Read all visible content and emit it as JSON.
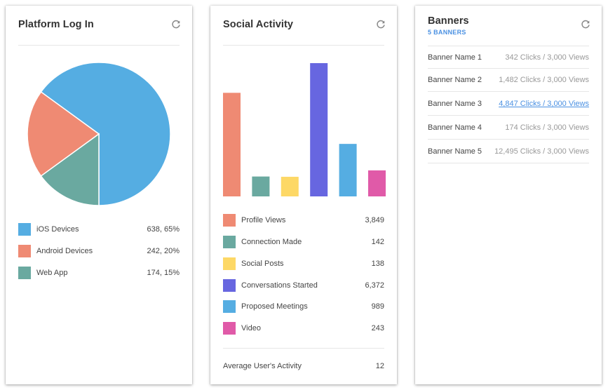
{
  "colors": {
    "ios": "#55ade2",
    "android": "#ef8a73",
    "webapp": "#6aa9a0",
    "social_posts": "#fdd866",
    "conversations": "#6766e0",
    "proposed": "#55ade2",
    "video": "#e05aa8",
    "link": "#4a90e2"
  },
  "platform": {
    "title": "Platform Log In",
    "refresh_icon": "refresh-icon",
    "legend": [
      {
        "label": "iOS Devices",
        "value": "638, 65%",
        "color": "#55ade2"
      },
      {
        "label": "Android Devices",
        "value": "242, 20%",
        "color": "#ef8a73"
      },
      {
        "label": "Web App",
        "value": "174, 15%",
        "color": "#6aa9a0"
      }
    ]
  },
  "social": {
    "title": "Social Activity",
    "refresh_icon": "refresh-icon",
    "legend": [
      {
        "label": "Profile Views",
        "value": "3,849",
        "color": "#ef8a73"
      },
      {
        "label": "Connection Made",
        "value": "142",
        "color": "#6aa9a0"
      },
      {
        "label": "Social Posts",
        "value": "138",
        "color": "#fdd866"
      },
      {
        "label": "Conversations Started",
        "value": "6,372",
        "color": "#6766e0"
      },
      {
        "label": "Proposed Meetings",
        "value": "989",
        "color": "#55ade2"
      },
      {
        "label": "Video",
        "value": "243",
        "color": "#e05aa8"
      }
    ],
    "avg_label": "Average User's Activity",
    "avg_value": "12"
  },
  "banners": {
    "title": "Banners",
    "subtitle": "5 BANNERS",
    "refresh_icon": "refresh-icon",
    "rows": [
      {
        "name": "Banner Name 1",
        "stats": "342 Clicks / 3,000 Views"
      },
      {
        "name": "Banner Name 2",
        "stats": "1,482 Clicks / 3,000 Views"
      },
      {
        "name": "Banner Name 3",
        "stats": "4,847 Clicks / 3,000 Views"
      },
      {
        "name": "Banner Name 4",
        "stats": "174 Clicks / 3,000 Views"
      },
      {
        "name": "Banner Name 5",
        "stats": "12,495 Clicks / 3,000 Views"
      }
    ]
  },
  "chart_data": [
    {
      "type": "pie",
      "categories": [
        "iOS Devices",
        "Android Devices",
        "Web App"
      ],
      "values": [
        65,
        20,
        15
      ]
    },
    {
      "type": "bar",
      "categories": [
        "Profile Views",
        "Connection Made",
        "Social Posts",
        "Conversations Started",
        "Proposed Meetings",
        "Video"
      ],
      "values": [
        3849,
        142,
        138,
        6372,
        989,
        243
      ]
    }
  ]
}
